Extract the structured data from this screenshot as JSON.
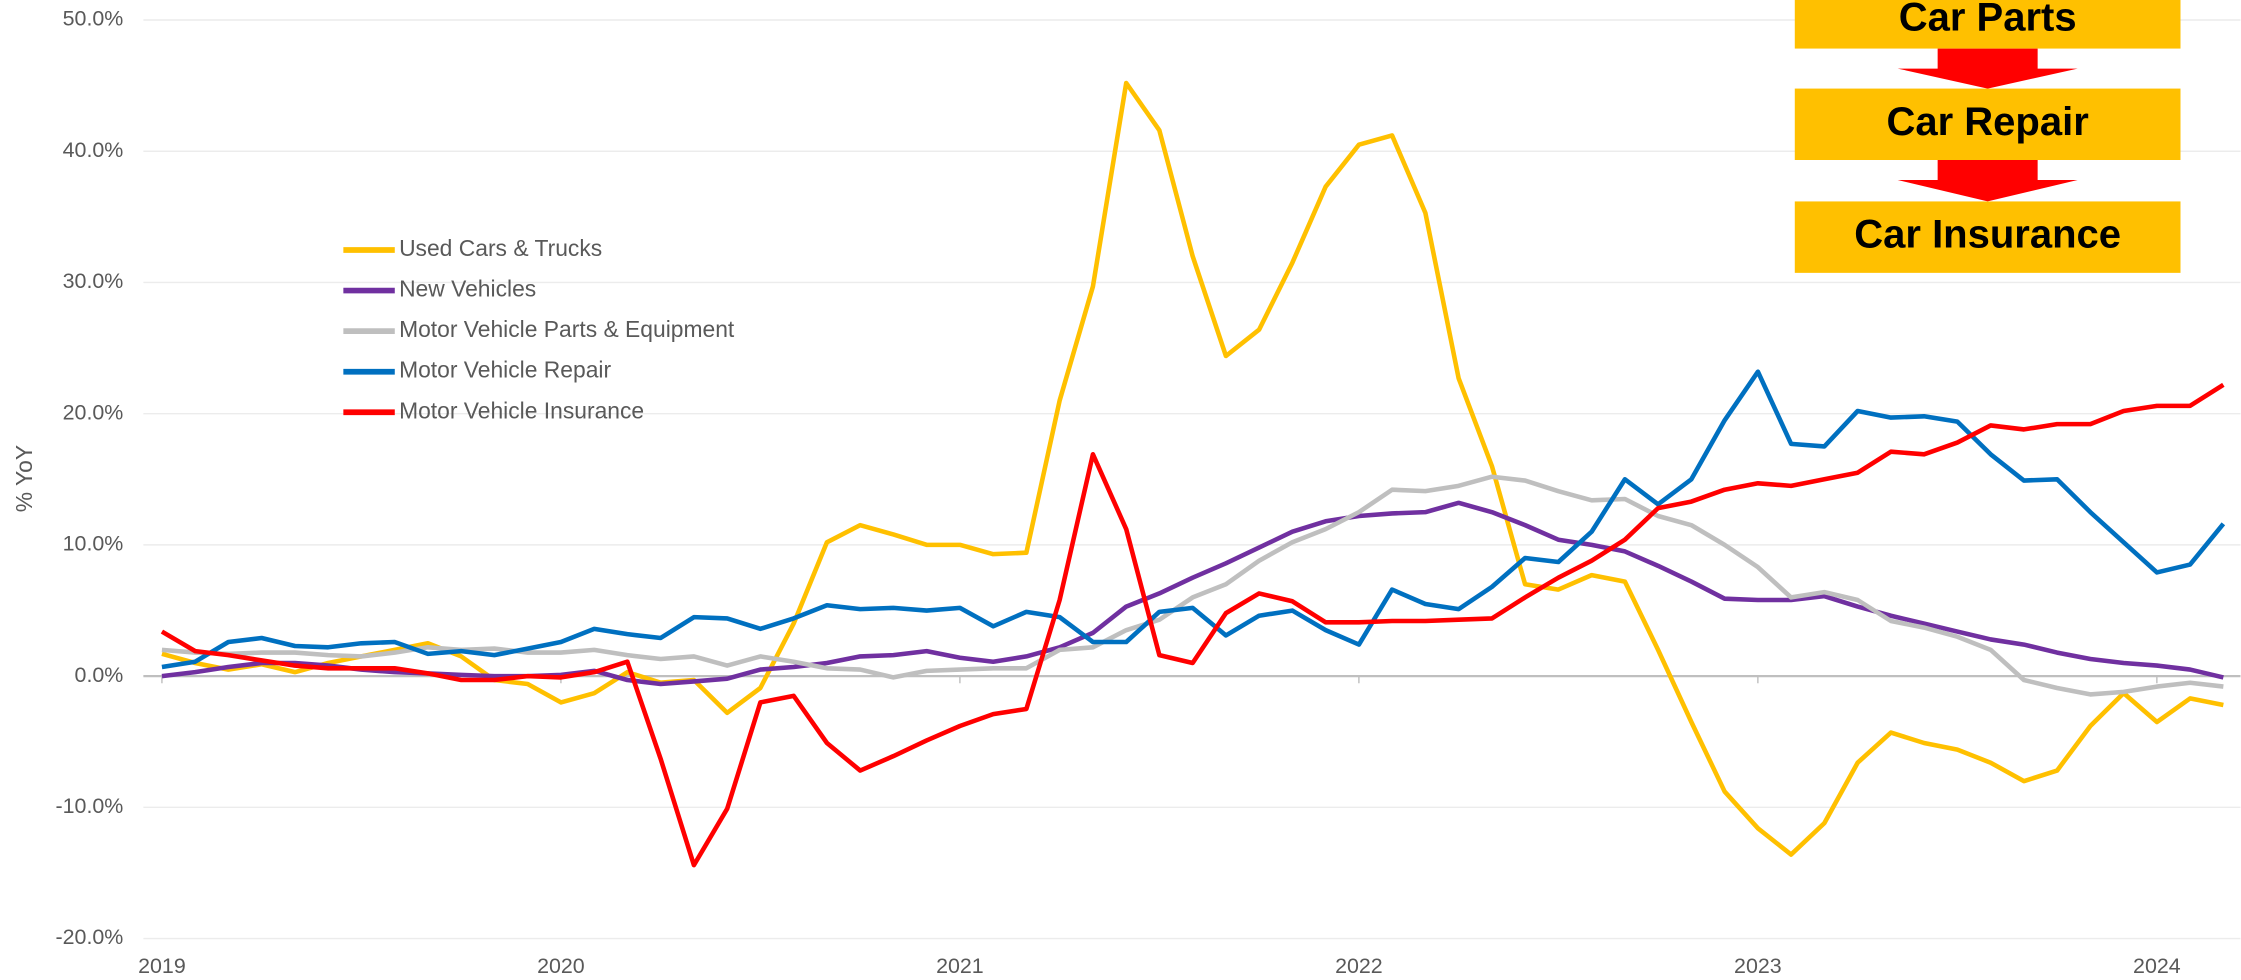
{
  "chart_data": {
    "type": "line",
    "y_label": "% YoY",
    "categories": [
      "2019",
      null,
      null,
      null,
      null,
      null,
      null,
      null,
      null,
      null,
      null,
      null,
      "2020",
      null,
      null,
      null,
      null,
      null,
      null,
      null,
      null,
      null,
      null,
      null,
      "2021",
      null,
      null,
      null,
      null,
      null,
      null,
      null,
      null,
      null,
      null,
      null,
      "2022",
      null,
      null,
      null,
      null,
      null,
      null,
      null,
      null,
      null,
      null,
      null,
      "2023",
      null,
      null,
      null,
      null,
      null,
      null,
      null,
      null,
      null,
      null,
      null,
      "2024",
      null,
      null
    ],
    "ylim": [
      -20,
      50
    ],
    "yticks": [
      {
        "value": -20,
        "label": "-20.0%"
      },
      {
        "value": -10,
        "label": "-10.0%"
      },
      {
        "value": 0,
        "label": "0.0%"
      },
      {
        "value": 10,
        "label": "10.0%"
      },
      {
        "value": 20,
        "label": "20.0%"
      },
      {
        "value": 30,
        "label": "30.0%"
      },
      {
        "value": 40,
        "label": "40.0%"
      },
      {
        "value": 50,
        "label": "50.0%"
      }
    ],
    "grid": true,
    "legend": "upper left",
    "series": [
      {
        "name": "Used Cars & Trucks",
        "color": "#ffc000",
        "values": [
          1.7,
          1.0,
          0.5,
          0.9,
          0.3,
          1.0,
          1.5,
          2.0,
          2.5,
          1.5,
          -0.3,
          -0.6,
          -2.0,
          -1.3,
          0.3,
          -0.5,
          -0.3,
          -2.8,
          -0.9,
          4.0,
          10.2,
          11.5,
          10.8,
          10.0,
          10.0,
          9.3,
          9.4,
          21.0,
          29.7,
          45.2,
          41.6,
          32.0,
          24.4,
          26.4,
          31.5,
          37.3,
          40.5,
          41.2,
          35.3,
          22.7,
          16.0,
          7.0,
          6.6,
          7.7,
          7.2,
          2.0,
          -3.5,
          -8.8,
          -11.6,
          -13.6,
          -11.2,
          -6.6,
          -4.3,
          -5.1,
          -5.6,
          -6.6,
          -8.0,
          -7.2,
          -3.8,
          -1.3,
          -3.5,
          -1.7,
          -2.2
        ]
      },
      {
        "name": "New Vehicles",
        "color": "#7030a0",
        "values": [
          0,
          0.3,
          0.7,
          1.0,
          1.0,
          0.8,
          0.5,
          0.3,
          0.2,
          0.1,
          0.0,
          0.0,
          0.1,
          0.4,
          -0.3,
          -0.6,
          -0.4,
          -0.2,
          0.5,
          0.7,
          1.0,
          1.5,
          1.6,
          1.9,
          1.4,
          1.1,
          1.5,
          2.2,
          3.3,
          5.3,
          6.3,
          7.5,
          8.6,
          9.8,
          11.0,
          11.8,
          12.2,
          12.4,
          12.5,
          13.2,
          12.5,
          11.5,
          10.4,
          10.0,
          9.5,
          8.4,
          7.2,
          5.9,
          5.8,
          5.8,
          6.1,
          5.3,
          4.6,
          4.0,
          3.4,
          2.8,
          2.4,
          1.8,
          1.3,
          1.0,
          0.8,
          0.5,
          -0.1
        ]
      },
      {
        "name": "Motor Vehicle Parts & Equipment",
        "color": "#bfbfbf",
        "values": [
          2.0,
          1.8,
          1.7,
          1.8,
          1.8,
          1.6,
          1.5,
          1.8,
          2.2,
          2.0,
          2.1,
          1.8,
          1.8,
          2.0,
          1.6,
          1.3,
          1.5,
          0.8,
          1.5,
          1.1,
          0.6,
          0.5,
          -0.1,
          0.4,
          0.5,
          0.6,
          0.6,
          2.0,
          2.2,
          3.5,
          4.3,
          6.0,
          7.0,
          8.8,
          10.2,
          11.2,
          12.5,
          14.2,
          14.1,
          14.5,
          15.2,
          14.9,
          14.1,
          13.4,
          13.5,
          12.2,
          11.5,
          10.0,
          8.3,
          6.0,
          6.4,
          5.8,
          4.2,
          3.7,
          3.0,
          2.0,
          -0.3,
          -0.9,
          -1.4,
          -1.2,
          -0.8,
          -0.5,
          -0.8
        ]
      },
      {
        "name": "Motor Vehicle Repair",
        "color": "#0070c0",
        "values": [
          0.7,
          1.1,
          2.6,
          2.9,
          2.3,
          2.2,
          2.5,
          2.6,
          1.7,
          1.9,
          1.6,
          2.1,
          2.6,
          3.6,
          3.2,
          2.9,
          4.5,
          4.4,
          3.6,
          4.4,
          5.4,
          5.1,
          5.2,
          5.0,
          5.2,
          3.8,
          4.9,
          4.5,
          2.6,
          2.6,
          4.9,
          5.2,
          3.1,
          4.6,
          5.0,
          3.5,
          2.4,
          6.6,
          5.5,
          5.1,
          6.8,
          9.0,
          8.7,
          11.0,
          15.0,
          13.1,
          15.0,
          19.5,
          23.2,
          17.7,
          17.5,
          20.2,
          19.7,
          19.8,
          19.4,
          16.9,
          14.9,
          15.0,
          12.5,
          10.2,
          7.9,
          8.5,
          11.6
        ]
      },
      {
        "name": "Motor Vehicle Insurance",
        "color": "#ff0000",
        "values": [
          3.4,
          1.9,
          1.6,
          1.2,
          0.8,
          0.6,
          0.6,
          0.6,
          0.2,
          -0.3,
          -0.3,
          0.0,
          -0.1,
          0.3,
          1.1,
          -6.3,
          -14.4,
          -10.1,
          -2.0,
          -1.5,
          -5.1,
          -7.2,
          -6.1,
          -4.9,
          -3.8,
          -2.9,
          -2.5,
          5.8,
          16.9,
          11.2,
          1.6,
          1.0,
          4.8,
          6.3,
          5.7,
          4.1,
          4.1,
          4.2,
          4.2,
          4.3,
          4.4,
          6.0,
          7.5,
          8.8,
          10.4,
          12.8,
          13.3,
          14.2,
          14.7,
          14.5,
          15.0,
          15.5,
          17.1,
          16.9,
          17.8,
          19.1,
          18.8,
          19.2,
          19.2,
          20.2,
          20.6,
          20.6,
          22.2
        ]
      }
    ],
    "annotations": [
      "Car Parts",
      "Car Repair",
      "Car Insurance"
    ]
  }
}
